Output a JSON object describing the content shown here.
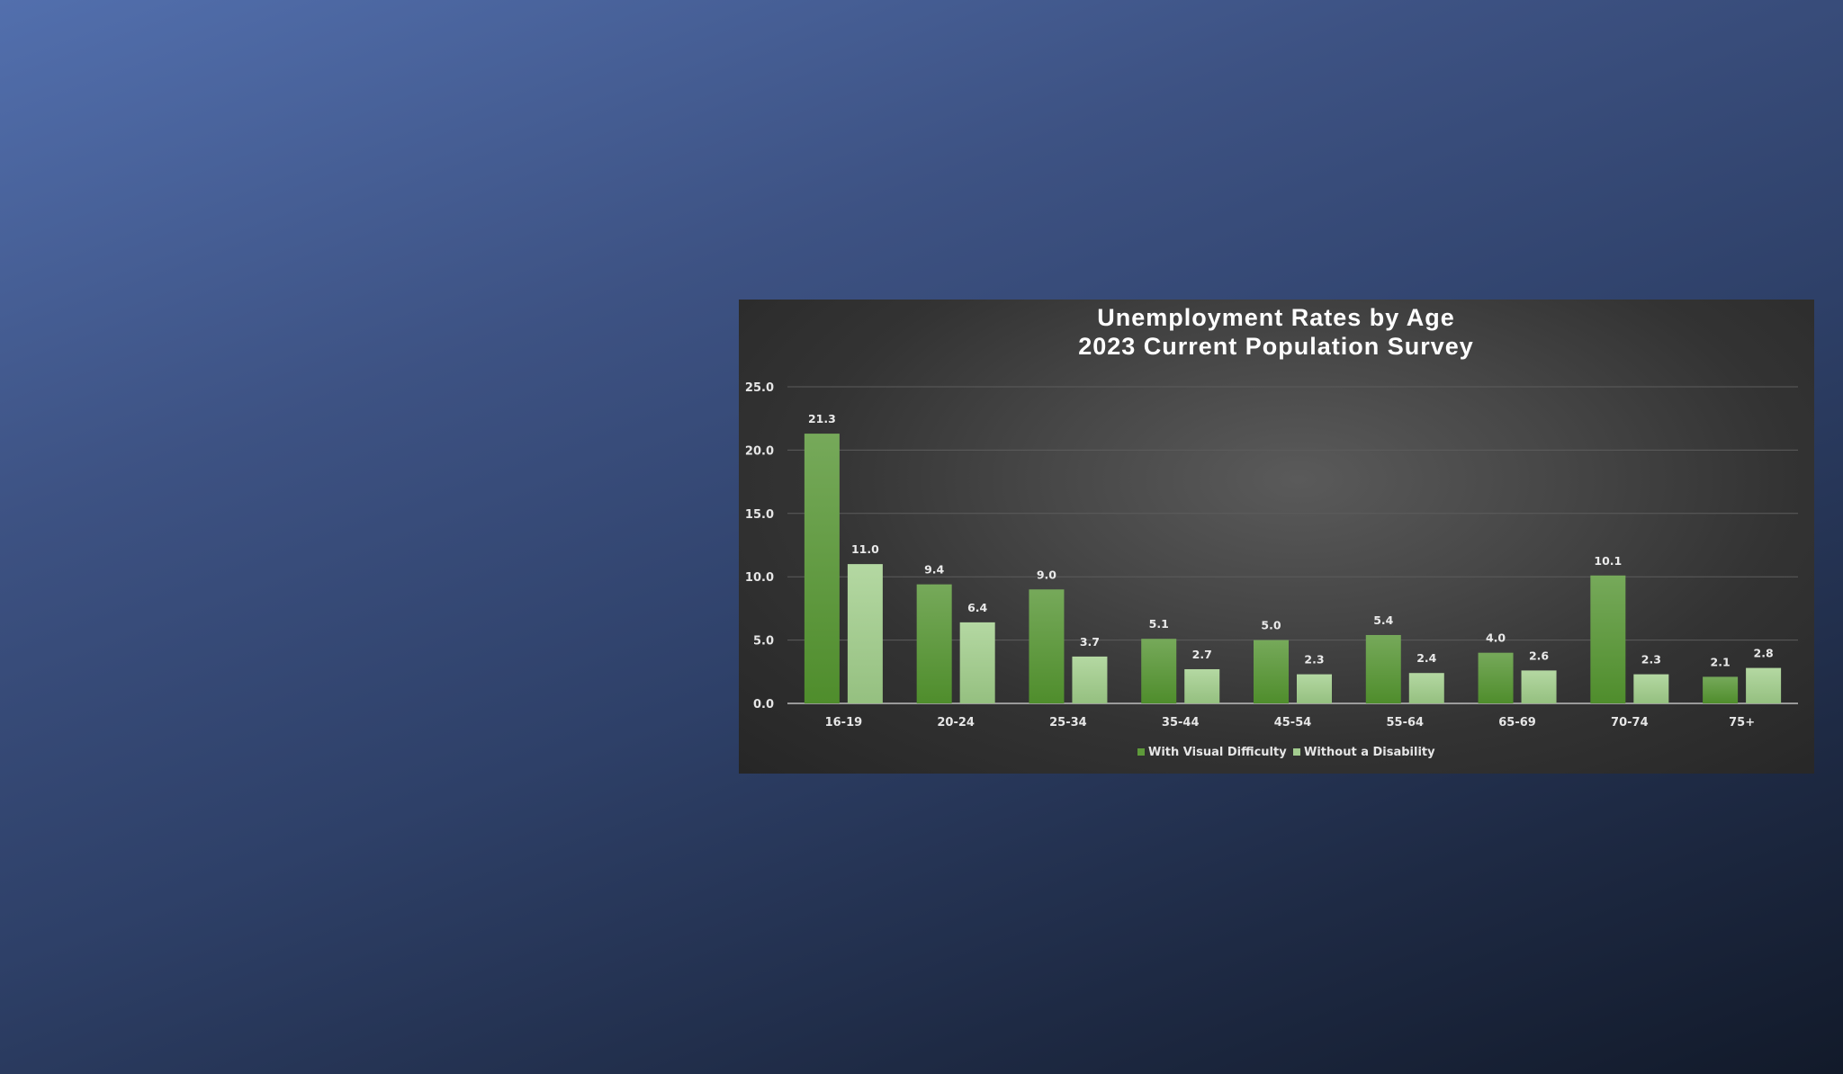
{
  "chart_data": {
    "type": "bar",
    "title": "Unemployment Rates by Age",
    "subtitle": "2023 Current Population Survey",
    "xlabel": "",
    "ylabel": "",
    "ylim": [
      0,
      25
    ],
    "yticks": [
      "0.0",
      "5.0",
      "10.0",
      "15.0",
      "20.0",
      "25.0"
    ],
    "grid": true,
    "legend_position": "bottom",
    "categories": [
      "16-19",
      "20-24",
      "25-34",
      "35-44",
      "45-54",
      "55-64",
      "65-69",
      "70-74",
      "75+"
    ],
    "series": [
      {
        "name": "With Visual Difficulty",
        "color": "#5e9a3a",
        "values": [
          21.3,
          9.4,
          9.0,
          5.1,
          5.0,
          5.4,
          4.0,
          10.1,
          2.1
        ],
        "labels": [
          "21.3",
          "9.4",
          "9.0",
          "5.1",
          "5.0",
          "5.4",
          "4.0",
          "10.1",
          "2.1"
        ]
      },
      {
        "name": "Without a Disability",
        "color": "#a3cc8f",
        "values": [
          11.0,
          6.4,
          3.7,
          2.7,
          2.3,
          2.4,
          2.6,
          2.3,
          2.8
        ],
        "labels": [
          "11.0",
          "6.4",
          "3.7",
          "2.7",
          "2.3",
          "2.4",
          "2.6",
          "2.3",
          "2.8"
        ]
      }
    ]
  }
}
